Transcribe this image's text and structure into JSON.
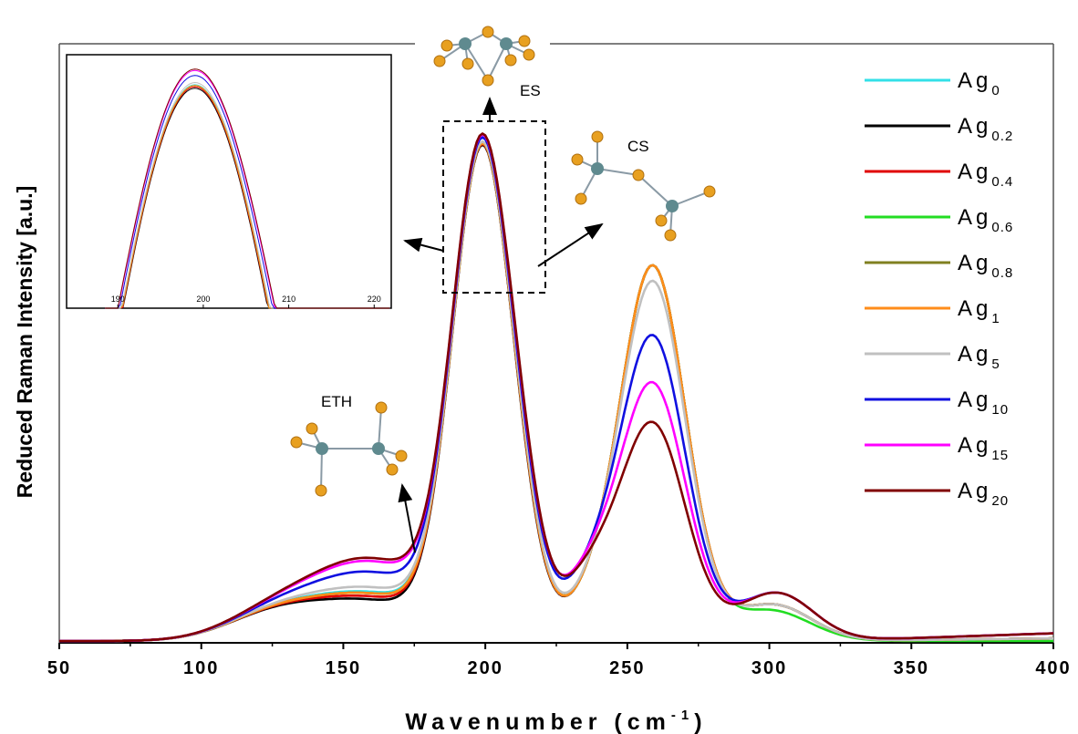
{
  "chart_data": {
    "type": "line",
    "xlabel": "Wavenumber (cm",
    "xlabel_sup": "-1",
    "xlabel_close": ")",
    "ylabel": "Reduced Raman Intensity [a.u.]",
    "xlim": [
      50,
      400
    ],
    "xticks": [
      "50",
      "100",
      "150",
      "200",
      "250",
      "300",
      "350",
      "400"
    ],
    "annotations": [
      {
        "text": "ES"
      },
      {
        "text": "CS"
      },
      {
        "text": "ETH"
      }
    ],
    "inset": {
      "xlim": [
        184,
        222
      ],
      "xticks": [
        "190",
        "200",
        "210",
        "220"
      ]
    },
    "series": [
      {
        "name": "Ag",
        "sub": "0",
        "color": "#33e0e8",
        "peak_ratio": 0.47,
        "dip_ratio": 0.16,
        "shoulder": 0.3,
        "tail": 0.01
      },
      {
        "name": "Ag",
        "sub": "0.2",
        "color": "#000000",
        "peak_ratio": 0.47,
        "dip_ratio": 0.16,
        "shoulder": 0.25,
        "tail": 0.01
      },
      {
        "name": "Ag",
        "sub": "0.4",
        "color": "#e00000",
        "peak_ratio": 0.47,
        "dip_ratio": 0.16,
        "shoulder": 0.27,
        "tail": 0.01
      },
      {
        "name": "Ag",
        "sub": "0.6",
        "color": "#22dd22",
        "peak_ratio": 0.47,
        "dip_ratio": 0.16,
        "shoulder": 0.29,
        "tail": 0.0
      },
      {
        "name": "Ag",
        "sub": "0.8",
        "color": "#808020",
        "peak_ratio": 0.47,
        "dip_ratio": 0.16,
        "shoulder": 0.29,
        "tail": 0.01
      },
      {
        "name": "Ag",
        "sub": "1",
        "color": "#ff8c1a",
        "peak_ratio": 0.47,
        "dip_ratio": 0.16,
        "shoulder": 0.29,
        "tail": 0.01
      },
      {
        "name": "Ag",
        "sub": "5",
        "color": "#c0c0c0",
        "peak_ratio": 0.45,
        "dip_ratio": 0.18,
        "shoulder": 0.33,
        "tail": 0.01
      },
      {
        "name": "Ag",
        "sub": "10",
        "color": "#1010e0",
        "peak_ratio": 0.38,
        "dip_ratio": 0.29,
        "shoulder": 0.43,
        "tail": 0.03
      },
      {
        "name": "Ag",
        "sub": "15",
        "color": "#ff00ff",
        "peak_ratio": 0.32,
        "dip_ratio": 0.32,
        "shoulder": 0.5,
        "tail": 0.03
      },
      {
        "name": "Ag",
        "sub": "20",
        "color": "#800000",
        "peak_ratio": 0.27,
        "dip_ratio": 0.32,
        "shoulder": 0.52,
        "tail": 0.03
      }
    ]
  }
}
